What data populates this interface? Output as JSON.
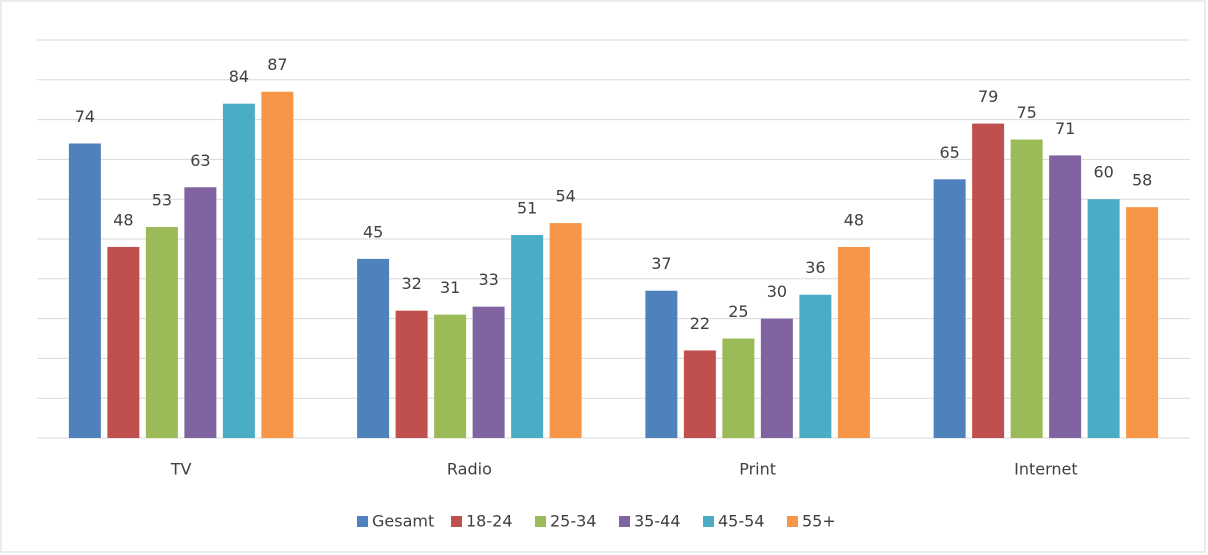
{
  "chart_data": {
    "type": "bar",
    "categories": [
      "TV",
      "Radio",
      "Print",
      "Internet"
    ],
    "series": [
      {
        "name": "Gesamt",
        "color": "#4f81bd",
        "values": [
          74,
          45,
          37,
          65
        ]
      },
      {
        "name": "18-24",
        "color": "#c0504d",
        "values": [
          48,
          32,
          22,
          79
        ]
      },
      {
        "name": "25-34",
        "color": "#9bbb59",
        "values": [
          53,
          31,
          25,
          75
        ]
      },
      {
        "name": "35-44",
        "color": "#8064a2",
        "values": [
          63,
          33,
          30,
          71
        ]
      },
      {
        "name": "45-54",
        "color": "#4bacc6",
        "values": [
          84,
          51,
          36,
          60
        ]
      },
      {
        "name": "55+",
        "color": "#f79646",
        "values": [
          87,
          54,
          48,
          58
        ]
      }
    ],
    "ylim": [
      0,
      100
    ],
    "yticks": [
      0,
      10,
      20,
      30,
      40,
      50,
      60,
      70,
      80,
      90,
      100
    ],
    "grid": true,
    "legend": "bottom"
  }
}
